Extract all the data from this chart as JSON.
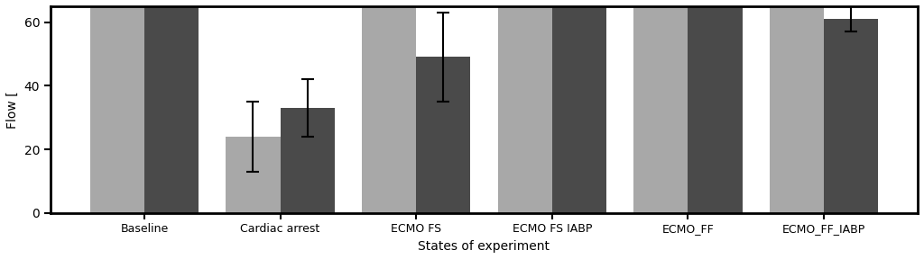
{
  "categories": [
    "Baseline",
    "Cardiac arrest",
    "ECMO FS",
    "ECMO FS IABP",
    "ECMO_FF",
    "ECMO_FF_IABP"
  ],
  "light_values": [
    65,
    24,
    65,
    65,
    65,
    65
  ],
  "dark_values": [
    65,
    33,
    49,
    65,
    65,
    61
  ],
  "light_errors": [
    0,
    11,
    0,
    0,
    0,
    0
  ],
  "dark_errors": [
    0,
    9,
    14,
    0,
    0,
    4
  ],
  "light_color": "#a8a8a8",
  "dark_color": "#4a4a4a",
  "xlabel": "States of experiment",
  "ylabel": "Flow [",
  "ylim": [
    0,
    65
  ],
  "yticks": [
    0,
    20,
    40,
    60
  ],
  "bar_width": 0.4,
  "figsize": [
    10.24,
    2.88
  ],
  "dpi": 100,
  "spine_linewidth": 2.0,
  "tick_fontsize": 9,
  "label_fontsize": 10
}
